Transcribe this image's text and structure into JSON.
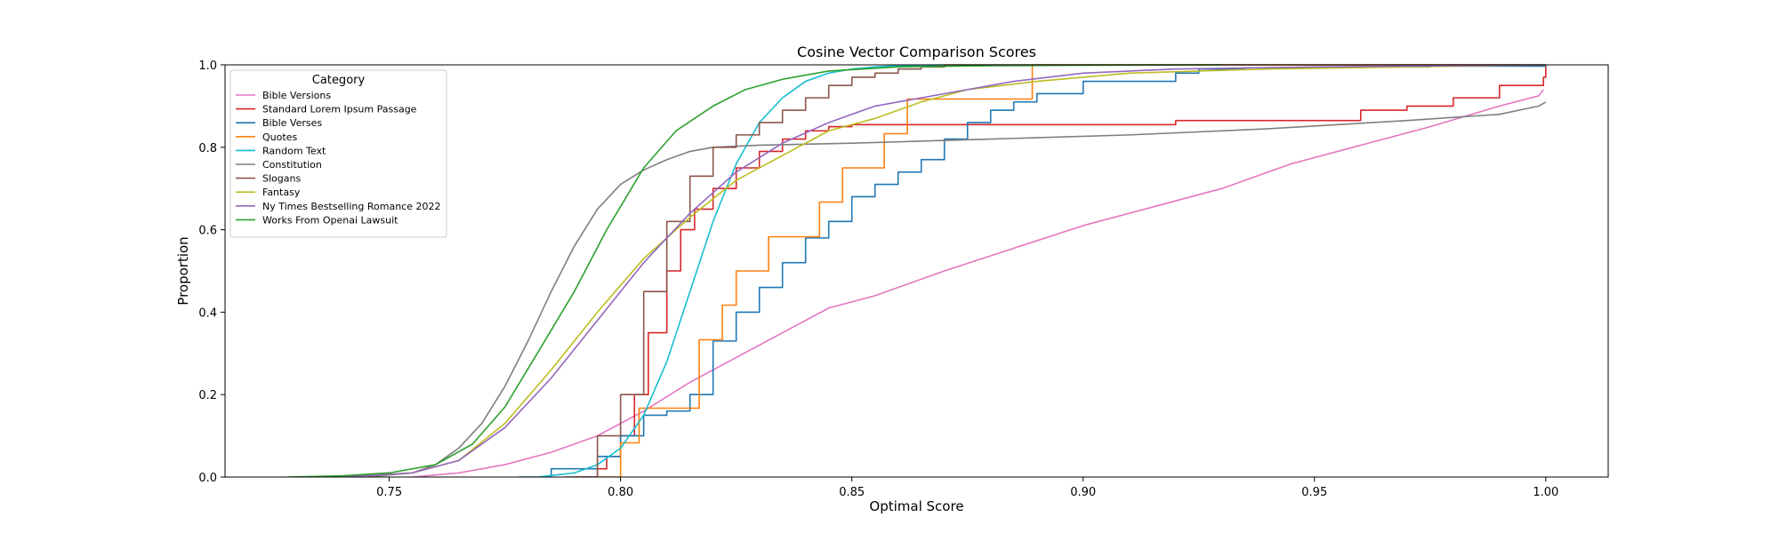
{
  "chart_data": {
    "type": "line",
    "title": "Cosine Vector Comparison Scores",
    "xlabel": "Optimal Score",
    "ylabel": "Proportion",
    "xlim": [
      0.7145,
      1.0135
    ],
    "ylim": [
      0.0,
      1.0
    ],
    "x_ticks": [
      0.75,
      0.8,
      0.85,
      0.9,
      0.95,
      1.0
    ],
    "x_tick_labels": [
      "0.75",
      "0.80",
      "0.85",
      "0.90",
      "0.95",
      "1.00"
    ],
    "y_ticks": [
      0.0,
      0.2,
      0.4,
      0.6,
      0.8,
      1.0
    ],
    "y_tick_labels": [
      "0.0",
      "0.2",
      "0.4",
      "0.6",
      "0.8",
      "1.0"
    ],
    "grid": false,
    "legend": {
      "title": "Category",
      "placement": "upper-left"
    },
    "series": [
      {
        "name": "Bible Versions",
        "color": "#e377c2",
        "step": false,
        "x": [
          0.755,
          0.765,
          0.775,
          0.785,
          0.795,
          0.805,
          0.815,
          0.825,
          0.835,
          0.845,
          0.855,
          0.87,
          0.885,
          0.9,
          0.915,
          0.93,
          0.945,
          0.96,
          0.975,
          0.99,
          0.9985,
          0.9995
        ],
        "y": [
          0.0,
          0.01,
          0.03,
          0.06,
          0.1,
          0.16,
          0.23,
          0.29,
          0.35,
          0.41,
          0.44,
          0.5,
          0.555,
          0.61,
          0.655,
          0.7,
          0.76,
          0.805,
          0.85,
          0.9,
          0.925,
          0.94
        ]
      },
      {
        "name": "Standard Lorem Ipsum Passage",
        "color": "#d62728",
        "step": true,
        "x": [
          0.79,
          0.795,
          0.797,
          0.8,
          0.803,
          0.806,
          0.81,
          0.813,
          0.816,
          0.82,
          0.825,
          0.83,
          0.835,
          0.84,
          0.845,
          0.85,
          0.92,
          0.96,
          0.97,
          0.98,
          0.99,
          0.9995,
          1.0
        ],
        "y": [
          0.0,
          0.02,
          0.05,
          0.1,
          0.2,
          0.35,
          0.5,
          0.6,
          0.65,
          0.7,
          0.75,
          0.79,
          0.82,
          0.84,
          0.85,
          0.855,
          0.865,
          0.89,
          0.9,
          0.92,
          0.95,
          0.97,
          1.0
        ]
      },
      {
        "name": "Bible Verses",
        "color": "#1f77b4",
        "step": true,
        "x": [
          0.778,
          0.785,
          0.795,
          0.8,
          0.805,
          0.81,
          0.815,
          0.82,
          0.825,
          0.83,
          0.835,
          0.84,
          0.845,
          0.85,
          0.855,
          0.86,
          0.865,
          0.87,
          0.875,
          0.88,
          0.885,
          0.89,
          0.9,
          0.92,
          0.925,
          0.935,
          0.96,
          0.975,
          1.0
        ],
        "y": [
          0.0,
          0.02,
          0.05,
          0.1,
          0.15,
          0.16,
          0.2,
          0.33,
          0.4,
          0.46,
          0.52,
          0.58,
          0.62,
          0.68,
          0.71,
          0.74,
          0.77,
          0.82,
          0.86,
          0.89,
          0.91,
          0.93,
          0.96,
          0.98,
          0.99,
          0.993,
          0.995,
          0.997,
          1.0
        ]
      },
      {
        "name": "Quotes",
        "color": "#ff7f0e",
        "step": true,
        "x": [
          0.795,
          0.8,
          0.804,
          0.817,
          0.822,
          0.825,
          0.832,
          0.843,
          0.848,
          0.857,
          0.862,
          0.889,
          0.894,
          1.0
        ],
        "y": [
          0.0,
          0.083,
          0.167,
          0.333,
          0.417,
          0.5,
          0.583,
          0.667,
          0.75,
          0.833,
          0.917,
          1.0,
          1.0,
          1.0
        ]
      },
      {
        "name": "Random Text",
        "color": "#17becf",
        "step": false,
        "x": [
          0.782,
          0.79,
          0.795,
          0.8,
          0.805,
          0.81,
          0.815,
          0.82,
          0.825,
          0.83,
          0.835,
          0.84,
          0.845,
          0.85,
          0.855,
          0.86,
          0.87
        ],
        "y": [
          0.0,
          0.01,
          0.03,
          0.07,
          0.15,
          0.28,
          0.45,
          0.62,
          0.76,
          0.86,
          0.92,
          0.96,
          0.98,
          0.99,
          0.995,
          0.998,
          1.0
        ]
      },
      {
        "name": "Constitution",
        "color": "#7f7f7f",
        "step": false,
        "x": [
          0.745,
          0.755,
          0.76,
          0.765,
          0.77,
          0.775,
          0.78,
          0.785,
          0.79,
          0.795,
          0.8,
          0.805,
          0.81,
          0.815,
          0.82,
          0.83,
          0.85,
          0.88,
          0.91,
          0.94,
          0.97,
          0.99,
          0.9985,
          1.0
        ],
        "y": [
          0.0,
          0.01,
          0.03,
          0.07,
          0.13,
          0.22,
          0.33,
          0.45,
          0.56,
          0.65,
          0.71,
          0.745,
          0.77,
          0.79,
          0.8,
          0.805,
          0.81,
          0.82,
          0.83,
          0.845,
          0.865,
          0.88,
          0.9,
          0.91
        ]
      },
      {
        "name": "Slogans",
        "color": "#8c564b",
        "step": true,
        "x": [
          0.788,
          0.795,
          0.8,
          0.805,
          0.81,
          0.815,
          0.82,
          0.825,
          0.83,
          0.835,
          0.84,
          0.845,
          0.85,
          0.855,
          0.86,
          0.865,
          0.87,
          1.0
        ],
        "y": [
          0.0,
          0.1,
          0.2,
          0.45,
          0.62,
          0.73,
          0.8,
          0.83,
          0.86,
          0.89,
          0.92,
          0.95,
          0.97,
          0.98,
          0.99,
          0.995,
          1.0,
          1.0
        ]
      },
      {
        "name": "Fantasy",
        "color": "#bcbd22",
        "step": false,
        "x": [
          0.74,
          0.755,
          0.765,
          0.775,
          0.785,
          0.795,
          0.805,
          0.815,
          0.825,
          0.835,
          0.845,
          0.855,
          0.865,
          0.875,
          0.89,
          0.91,
          0.94,
          0.97,
          1.0
        ],
        "y": [
          0.0,
          0.01,
          0.04,
          0.13,
          0.26,
          0.4,
          0.53,
          0.63,
          0.72,
          0.78,
          0.84,
          0.87,
          0.91,
          0.94,
          0.96,
          0.98,
          0.99,
          0.995,
          1.0
        ]
      },
      {
        "name": "Ny Times Bestselling Romance 2022",
        "color": "#9467bd",
        "step": false,
        "x": [
          0.74,
          0.755,
          0.765,
          0.775,
          0.785,
          0.795,
          0.805,
          0.815,
          0.825,
          0.835,
          0.845,
          0.855,
          0.87,
          0.885,
          0.9,
          0.92,
          0.95,
          0.98,
          1.0
        ],
        "y": [
          0.0,
          0.01,
          0.04,
          0.12,
          0.24,
          0.38,
          0.52,
          0.64,
          0.74,
          0.81,
          0.86,
          0.9,
          0.93,
          0.96,
          0.98,
          0.99,
          0.995,
          0.998,
          1.0
        ]
      },
      {
        "name": "Works From Openai Lawsuit",
        "color": "#2ca02c",
        "step": false,
        "x": [
          0.728,
          0.74,
          0.75,
          0.76,
          0.768,
          0.775,
          0.782,
          0.79,
          0.797,
          0.805,
          0.812,
          0.82,
          0.827,
          0.835,
          0.845,
          0.86,
          0.88,
          0.9,
          0.93
        ],
        "y": [
          0.0,
          0.003,
          0.01,
          0.03,
          0.08,
          0.17,
          0.3,
          0.45,
          0.6,
          0.75,
          0.84,
          0.9,
          0.94,
          0.965,
          0.985,
          0.995,
          0.998,
          0.999,
          1.0
        ]
      }
    ]
  }
}
